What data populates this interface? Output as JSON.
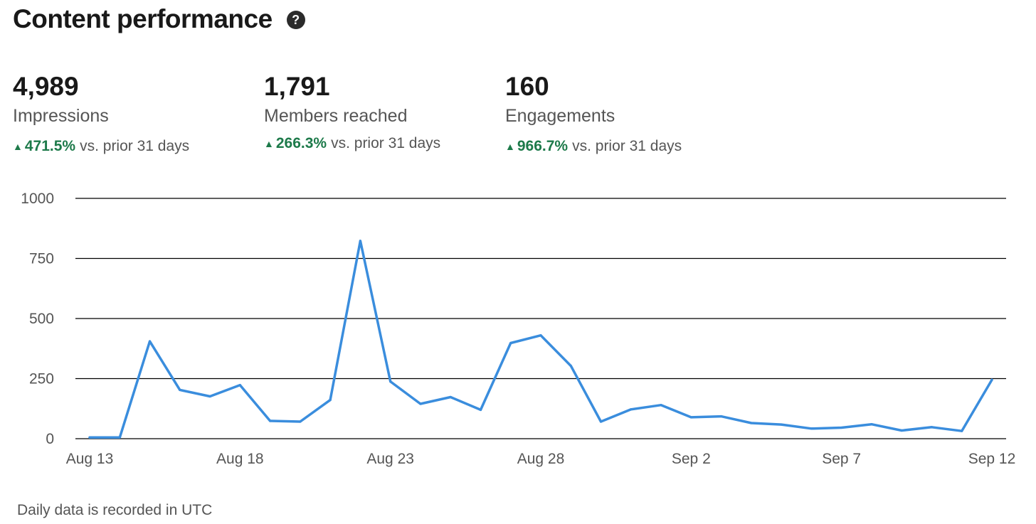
{
  "header": {
    "title": "Content performance",
    "help_icon": "help-circle-icon"
  },
  "metrics": [
    {
      "value": "4,989",
      "label": "Impressions",
      "change_pct": "471.5%",
      "change_suffix": "vs. prior 31 days"
    },
    {
      "value": "1,791",
      "label": "Members reached",
      "change_pct": "266.3%",
      "change_suffix": "vs. prior 31 days"
    },
    {
      "value": "160",
      "label": "Engagements",
      "change_pct": "966.7%",
      "change_suffix": "vs. prior 31 days"
    }
  ],
  "colors": {
    "line": "#3a8ddd",
    "positive": "#1d7a4a",
    "grid": "#000000"
  },
  "chart_data": {
    "type": "line",
    "title": "",
    "xlabel": "",
    "ylabel": "",
    "ylim": [
      0,
      1000
    ],
    "yticks": [
      0,
      250,
      500,
      750,
      1000
    ],
    "x_tick_labels": [
      "Aug 13",
      "Aug 18",
      "Aug 23",
      "Aug 28",
      "Sep 2",
      "Sep 7",
      "Sep 12"
    ],
    "x": [
      "Aug 13",
      "Aug 14",
      "Aug 15",
      "Aug 16",
      "Aug 17",
      "Aug 18",
      "Aug 19",
      "Aug 20",
      "Aug 21",
      "Aug 22",
      "Aug 23",
      "Aug 24",
      "Aug 25",
      "Aug 26",
      "Aug 27",
      "Aug 28",
      "Aug 29",
      "Aug 30",
      "Aug 31",
      "Sep 1",
      "Sep 2",
      "Sep 3",
      "Sep 4",
      "Sep 5",
      "Sep 6",
      "Sep 7",
      "Sep 8",
      "Sep 9",
      "Sep 10",
      "Sep 11",
      "Sep 12"
    ],
    "series": [
      {
        "values": [
          5,
          5,
          405,
          203,
          176,
          223,
          74,
          71,
          161,
          823,
          238,
          145,
          173,
          120,
          398,
          430,
          303,
          71,
          122,
          140,
          89,
          93,
          65,
          59,
          42,
          46,
          60,
          34,
          48,
          32,
          245
        ]
      }
    ],
    "grid": true,
    "legend": "none"
  },
  "footer": {
    "note": "Daily data is recorded in UTC"
  }
}
